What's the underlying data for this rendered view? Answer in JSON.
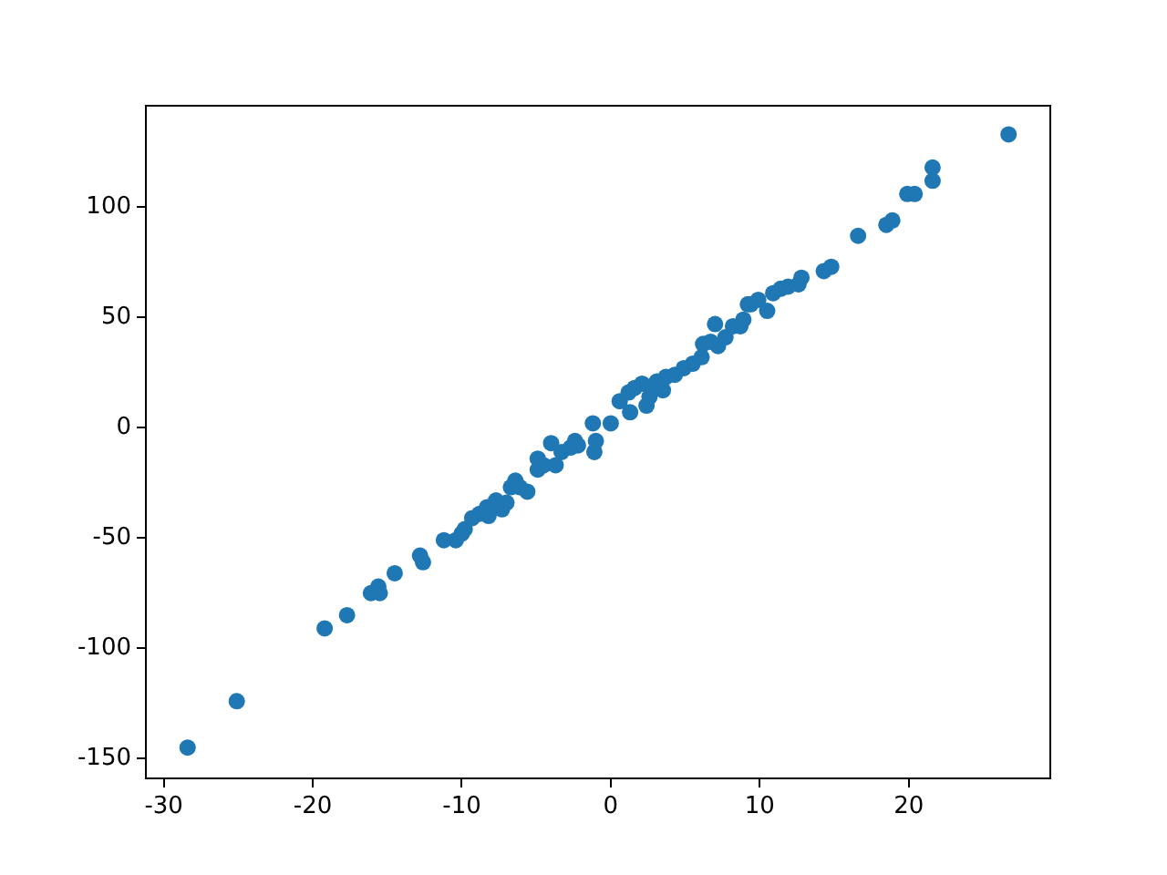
{
  "chart_data": {
    "type": "scatter",
    "marker": "circle",
    "grid": false,
    "legend": false,
    "xlim": [
      -31.2,
      29.5
    ],
    "ylim": [
      -159,
      146
    ],
    "xticks": [
      -30,
      -20,
      -10,
      0,
      10,
      20
    ],
    "yticks": [
      -150,
      -100,
      -50,
      0,
      50,
      100
    ],
    "series": [
      {
        "color": "#1f77b4",
        "x": [
          -28.4,
          -25.1,
          -19.2,
          -17.7,
          -16.1,
          -15.6,
          -15.5,
          -14.5,
          -12.8,
          -12.6,
          -11.2,
          -10.4,
          -10.0,
          -9.8,
          -9.3,
          -8.8,
          -8.3,
          -8.2,
          -7.7,
          -7.3,
          -7.0,
          -6.7,
          -6.4,
          -6.1,
          -5.6,
          -4.9,
          -4.9,
          -4.5,
          -4.0,
          -3.7,
          -3.3,
          -2.7,
          -2.4,
          -2.2,
          -1.2,
          -1.1,
          -1.0,
          0,
          0.6,
          1.2,
          1.3,
          1.6,
          2.1,
          2.4,
          2.6,
          2.8,
          3.1,
          3.5,
          3.7,
          4.3,
          4.9,
          5.5,
          6.1,
          6.2,
          6.7,
          7.0,
          7.2,
          7.7,
          8.2,
          8.7,
          8.9,
          9.2,
          9.4,
          9.9,
          10.5,
          10.9,
          11.4,
          11.9,
          12.6,
          12.8,
          14.3,
          14.8,
          16.6,
          18.5,
          18.9,
          19.9,
          20.4,
          21.6,
          21.6,
          26.7
        ],
        "values": [
          -145,
          -124,
          -91,
          -85,
          -75,
          -72,
          -75,
          -66,
          -58,
          -61,
          -51,
          -51,
          -48,
          -46,
          -41,
          -39,
          -36,
          -40,
          -33,
          -37,
          -34,
          -27,
          -24,
          -27,
          -29,
          -19,
          -14,
          -17,
          -7,
          -17,
          -11,
          -9,
          -6,
          -8,
          2,
          -11,
          -6,
          2,
          12,
          16,
          7,
          18,
          20,
          10,
          14,
          19,
          21,
          17,
          23,
          24,
          27,
          29,
          32,
          38,
          39,
          47,
          37,
          41,
          46,
          46,
          49,
          56,
          56,
          58,
          53,
          61,
          63,
          64,
          65,
          68,
          71,
          73,
          87,
          92,
          94,
          106,
          106,
          118,
          112,
          133
        ]
      }
    ]
  }
}
